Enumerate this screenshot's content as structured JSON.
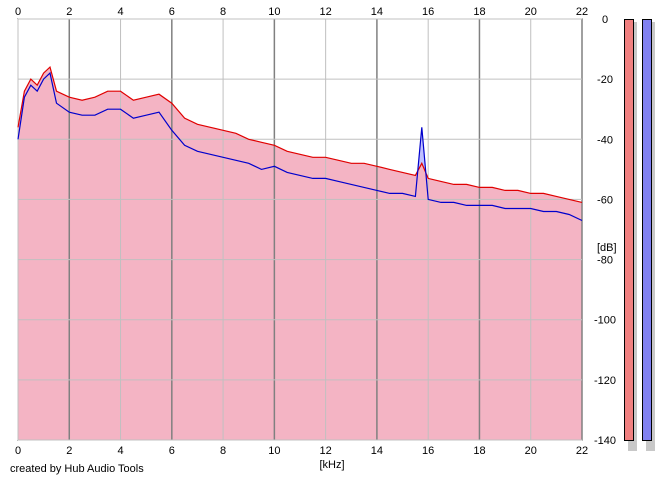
{
  "app": {
    "credit": "created by Hub Audio Tools"
  },
  "colors": {
    "background": "#ffffff",
    "plot_background": "#c0c0ff",
    "grid": "#c0c0c0",
    "left_channel": "#e00000",
    "left_fill": "#f4b4c4",
    "right_channel": "#0000cc",
    "right_fill": "#c0c0ff",
    "left_meter": "#f08080",
    "right_meter": "#8080f0"
  },
  "chart_data": {
    "type": "area",
    "title": "",
    "xlabel": "[kHz]",
    "ylabel": "[dB]",
    "xlim": [
      0,
      22
    ],
    "ylim": [
      -140,
      0
    ],
    "x_ticks": [
      "0",
      "2",
      "4",
      "6",
      "8",
      "10",
      "12",
      "14",
      "16",
      "18",
      "20",
      "22"
    ],
    "y_ticks": [
      "0",
      "-20",
      "-40",
      "-60",
      "-80",
      "-100",
      "-120",
      "-140"
    ],
    "grid": true,
    "legend": "none",
    "x": [
      0,
      0.25,
      0.5,
      0.75,
      1,
      1.25,
      1.5,
      2,
      2.5,
      3,
      3.5,
      4,
      4.5,
      5,
      5.5,
      6,
      6.5,
      7,
      7.5,
      8,
      8.5,
      9,
      9.5,
      10,
      10.5,
      11,
      11.5,
      12,
      12.5,
      13,
      13.5,
      14,
      14.5,
      15,
      15.5,
      15.75,
      16,
      16.5,
      17,
      17.5,
      18,
      18.5,
      19,
      19.5,
      20,
      20.5,
      21,
      21.5,
      22
    ],
    "series": [
      {
        "values": [
          -36,
          -24,
          -20,
          -22,
          -18,
          -16,
          -24,
          -26,
          -27,
          -26,
          -24,
          -24,
          -27,
          -26,
          -25,
          -28,
          -33,
          -35,
          -36,
          -37,
          -38,
          -40,
          -41,
          -42,
          -44,
          -45,
          -46,
          -46,
          -47,
          -48,
          -48,
          -49,
          -50,
          -51,
          -52,
          -48,
          -53,
          -54,
          -55,
          -55,
          -56,
          -56,
          -57,
          -57,
          -58,
          -58,
          -59,
          -60,
          -61
        ]
      },
      {
        "values": [
          -40,
          -26,
          -22,
          -24,
          -20,
          -18,
          -28,
          -31,
          -32,
          -32,
          -30,
          -30,
          -33,
          -32,
          -31,
          -37,
          -42,
          -44,
          -45,
          -46,
          -47,
          -48,
          -50,
          -49,
          -51,
          -52,
          -53,
          -53,
          -54,
          -55,
          -56,
          -57,
          -58,
          -58,
          -59,
          -36,
          -60,
          -61,
          -61,
          -62,
          -62,
          -62,
          -63,
          -63,
          -63,
          -64,
          -64,
          -65,
          -67
        ]
      }
    ]
  },
  "meters": {
    "left_level": 1.0,
    "right_level": 1.0
  }
}
